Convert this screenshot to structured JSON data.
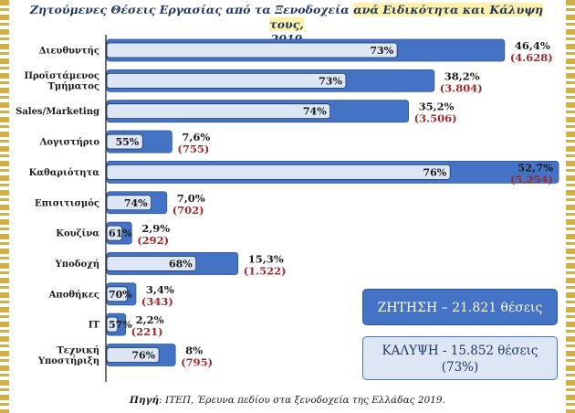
{
  "title_part1": "Ζητούμενες Θέσεις Εργασίας από τα Ξενοδοχεία ",
  "title_part2": "ανά Ειδικότητα και Κάλυψη τους,",
  "title_line2": "2019",
  "chart_data": {
    "type": "bar",
    "orientation": "horizontal",
    "categories": [
      [
        "Διευθυντής"
      ],
      [
        "Προϊστάμενος",
        "Τμήματος"
      ],
      [
        "Sales/Marketing"
      ],
      [
        "Λογιστήριο"
      ],
      [
        "Καθαριότητα"
      ],
      [
        "Επισιτισμός"
      ],
      [
        "Κουζίνα"
      ],
      [
        "Υποδοχή"
      ],
      [
        "Αποθήκες"
      ],
      [
        "IT"
      ],
      [
        "Τεχνική",
        "Υποστήριξη"
      ]
    ],
    "share_values": [
      46.4,
      38.2,
      35.2,
      7.6,
      52.7,
      7.0,
      2.9,
      15.3,
      3.4,
      2.2,
      8
    ],
    "share_labels": [
      "46,4%",
      "38,2%",
      "35,2%",
      "7,6%",
      "52,7%",
      "7,0%",
      "2,9%",
      "15,3%",
      "3,4%",
      "2,2%",
      "8%"
    ],
    "counts": [
      "(4.628)",
      "(3.804)",
      "(3.506)",
      "(755)",
      "(5.254)",
      "(702)",
      "(292)",
      "(1.522)",
      "(343)",
      "(221)",
      "(795)"
    ],
    "coverage_values": [
      73,
      73,
      74,
      55,
      76,
      74,
      61,
      68,
      70,
      57,
      76
    ],
    "coverage_labels": [
      "73%",
      "73%",
      "74%",
      "55%",
      "76%",
      "74%",
      "61%",
      "68%",
      "70%",
      "57%",
      "76%"
    ],
    "xlim": [
      0,
      52.7
    ],
    "colors": {
      "outer_bar": "#4472c4",
      "inner_bar": "#dde6f4",
      "count_text": "#a0262a"
    }
  },
  "demand_box": "ΖΗΤΗΣΗ – 21.821 θέσεις",
  "coverage_box_line1": "ΚΑΛΥΨΗ - 15.852 θέσεις",
  "coverage_box_line2": "(73%)",
  "source_label": "Πηγή",
  "source_text": ": ΙΤΕΠ, Έρευνα πεδίου στα ξενοδοχεία της Ελλάδας 2019."
}
